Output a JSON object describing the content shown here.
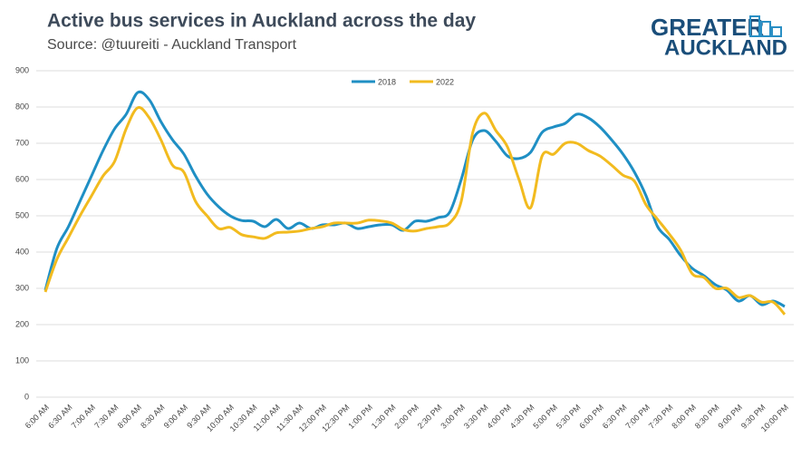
{
  "chart_data": {
    "type": "line",
    "title": "Active bus services in Auckland across the day",
    "subtitle": "Source: @tuureiti - Auckland Transport",
    "logo": [
      "GREATER",
      "AUCKLAND"
    ],
    "categories": [
      "6:00 AM",
      null,
      "6:30 AM",
      null,
      "7:00 AM",
      null,
      "7:30 AM",
      null,
      "8:00 AM",
      null,
      "8:30 AM",
      null,
      "9:00 AM",
      null,
      "9:30 AM",
      null,
      "10:00 AM",
      null,
      "10:30 AM",
      null,
      "11:00 AM",
      null,
      "11:30 AM",
      null,
      "12:00 PM",
      null,
      "12:30 PM",
      null,
      "1:00 PM",
      null,
      "1:30 PM",
      null,
      "2:00 PM",
      null,
      "2:30 PM",
      null,
      "3:00 PM",
      null,
      "3:30 PM",
      null,
      "4:00 PM",
      null,
      "4:30 PM",
      null,
      "5:00 PM",
      null,
      "5:30 PM",
      null,
      "6:00 PM",
      null,
      "6:30 PM",
      null,
      "7:00 PM",
      null,
      "7:30 PM",
      null,
      "8:00 PM",
      null,
      "8:30 PM",
      null,
      "9:00 PM",
      null,
      "9:30 PM",
      null,
      "10:00 PM"
    ],
    "series": [
      {
        "name": "2018",
        "color": "#1f8fc4",
        "values": [
          295,
          410,
          470,
          540,
          610,
          680,
          740,
          780,
          840,
          820,
          760,
          710,
          670,
          610,
          560,
          525,
          500,
          487,
          485,
          470,
          490,
          465,
          480,
          465,
          475,
          475,
          480,
          465,
          470,
          475,
          475,
          460,
          485,
          485,
          495,
          510,
          600,
          710,
          735,
          705,
          665,
          658,
          675,
          730,
          745,
          755,
          780,
          770,
          745,
          710,
          670,
          620,
          555,
          470,
          435,
          390,
          355,
          335,
          310,
          295,
          265,
          280,
          255,
          265,
          250
        ]
      },
      {
        "name": "2022",
        "color": "#f2bb1f",
        "values": [
          290,
          380,
          440,
          500,
          555,
          610,
          650,
          740,
          798,
          770,
          710,
          640,
          620,
          540,
          500,
          465,
          468,
          448,
          442,
          438,
          453,
          455,
          458,
          465,
          470,
          480,
          480,
          480,
          488,
          486,
          480,
          462,
          458,
          465,
          470,
          480,
          540,
          730,
          783,
          735,
          690,
          600,
          522,
          665,
          670,
          700,
          700,
          680,
          665,
          640,
          612,
          595,
          530,
          490,
          450,
          405,
          340,
          330,
          300,
          300,
          275,
          280,
          262,
          262,
          228
        ]
      }
    ],
    "ylim": [
      0,
      900
    ],
    "yticks": [
      0,
      100,
      200,
      300,
      400,
      500,
      600,
      700,
      800,
      900
    ],
    "grid": true,
    "legend": "top"
  }
}
